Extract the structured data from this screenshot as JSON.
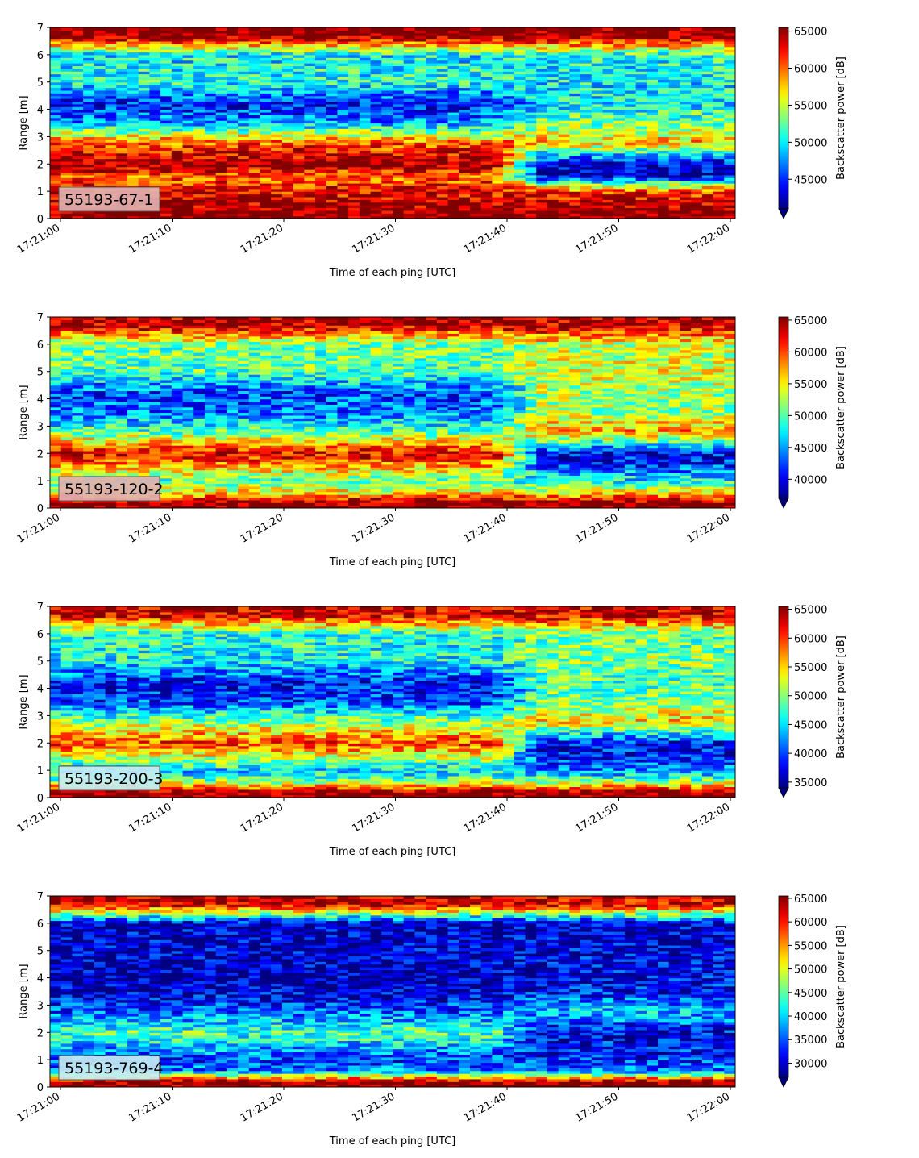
{
  "chart_data": [
    {
      "type": "heatmap",
      "station_label": "55193-67-1",
      "xlabel": "Time of each ping [UTC]",
      "ylabel": "Range [m]",
      "colorbar_label": "Backscatter power [dB]",
      "x_ticks": [
        "17:21:00",
        "17:21:10",
        "17:21:20",
        "17:21:30",
        "17:21:40",
        "17:21:50",
        "17:22:00"
      ],
      "y_ticks": [
        0,
        1,
        2,
        3,
        4,
        5,
        6,
        7
      ],
      "ylim": [
        0,
        7
      ],
      "clim": [
        41000,
        65500
      ],
      "colorbar_ticks": [
        45000,
        50000,
        55000,
        60000,
        65000
      ],
      "colormap": "jet",
      "extend": "min",
      "label_box_color": "#dfb0b0",
      "profile": [
        {
          "range_m": 0.2,
          "early": 65500,
          "late": 65500
        },
        {
          "range_m": 0.6,
          "early": 64000,
          "late": 64000
        },
        {
          "range_m": 1.0,
          "early": 62500,
          "late": 61000
        },
        {
          "range_m": 1.6,
          "early": 60000,
          "late": 43000
        },
        {
          "range_m": 2.0,
          "early": 65500,
          "late": 43000
        },
        {
          "range_m": 2.8,
          "early": 60000,
          "late": 58000
        },
        {
          "range_m": 3.5,
          "early": 48000,
          "late": 53000
        },
        {
          "range_m": 4.2,
          "early": 44000,
          "late": 50000
        },
        {
          "range_m": 5.0,
          "early": 51000,
          "late": 50000
        },
        {
          "range_m": 6.0,
          "early": 50000,
          "late": 51000
        },
        {
          "range_m": 6.7,
          "early": 65500,
          "late": 65500
        }
      ]
    },
    {
      "type": "heatmap",
      "station_label": "55193-120-2",
      "xlabel": "Time of each ping [UTC]",
      "ylabel": "Range [m]",
      "colorbar_label": "Backscatter power [dB]",
      "x_ticks": [
        "17:21:00",
        "17:21:10",
        "17:21:20",
        "17:21:30",
        "17:21:40",
        "17:21:50",
        "17:22:00"
      ],
      "y_ticks": [
        0,
        1,
        2,
        3,
        4,
        5,
        6,
        7
      ],
      "ylim": [
        0,
        7
      ],
      "clim": [
        37000,
        65500
      ],
      "colorbar_ticks": [
        40000,
        45000,
        50000,
        55000,
        60000,
        65000
      ],
      "colormap": "jet",
      "extend": "min",
      "label_box_color": "#dfb0b0",
      "profile": [
        {
          "range_m": 0.2,
          "early": 65500,
          "late": 65500
        },
        {
          "range_m": 0.6,
          "early": 55000,
          "late": 55000
        },
        {
          "range_m": 1.0,
          "early": 50000,
          "late": 48000
        },
        {
          "range_m": 1.6,
          "early": 58000,
          "late": 42000
        },
        {
          "range_m": 2.0,
          "early": 63000,
          "late": 40000
        },
        {
          "range_m": 2.8,
          "early": 50000,
          "late": 58000
        },
        {
          "range_m": 3.5,
          "early": 44000,
          "late": 52000
        },
        {
          "range_m": 4.2,
          "early": 42000,
          "late": 52000
        },
        {
          "range_m": 5.0,
          "early": 50000,
          "late": 54000
        },
        {
          "range_m": 6.0,
          "early": 51000,
          "late": 53000
        },
        {
          "range_m": 6.7,
          "early": 64000,
          "late": 64000
        }
      ]
    },
    {
      "type": "heatmap",
      "station_label": "55193-200-3",
      "xlabel": "Time of each ping [UTC]",
      "ylabel": "Range [m]",
      "colorbar_label": "Backscatter power [dB]",
      "x_ticks": [
        "17:21:00",
        "17:21:10",
        "17:21:20",
        "17:21:30",
        "17:21:40",
        "17:21:50",
        "17:22:00"
      ],
      "y_ticks": [
        0,
        1,
        2,
        3,
        4,
        5,
        6,
        7
      ],
      "ylim": [
        0,
        7
      ],
      "clim": [
        34000,
        65500
      ],
      "colorbar_ticks": [
        35000,
        40000,
        45000,
        50000,
        55000,
        60000,
        65000
      ],
      "colormap": "jet",
      "extend": "min",
      "label_box_color": "#c6ecf3",
      "profile": [
        {
          "range_m": 0.2,
          "early": 65500,
          "late": 65500
        },
        {
          "range_m": 0.6,
          "early": 50000,
          "late": 50000
        },
        {
          "range_m": 1.0,
          "early": 44000,
          "late": 42000
        },
        {
          "range_m": 1.6,
          "early": 54000,
          "late": 38000
        },
        {
          "range_m": 2.0,
          "early": 60000,
          "late": 38000
        },
        {
          "range_m": 2.8,
          "early": 50000,
          "late": 55000
        },
        {
          "range_m": 3.5,
          "early": 40000,
          "late": 50000
        },
        {
          "range_m": 4.2,
          "early": 38000,
          "late": 48000
        },
        {
          "range_m": 5.0,
          "early": 46000,
          "late": 50000
        },
        {
          "range_m": 6.0,
          "early": 47000,
          "late": 49000
        },
        {
          "range_m": 6.7,
          "early": 63000,
          "late": 63000
        }
      ]
    },
    {
      "type": "heatmap",
      "station_label": "55193-769-4",
      "xlabel": "Time of each ping [UTC]",
      "ylabel": "Range [m]",
      "colorbar_label": "Backscatter power [dB]",
      "x_ticks": [
        "17:21:00",
        "17:21:10",
        "17:21:20",
        "17:21:30",
        "17:21:40",
        "17:21:50",
        "17:22:00"
      ],
      "y_ticks": [
        0,
        1,
        2,
        3,
        4,
        5,
        6,
        7
      ],
      "ylim": [
        0,
        7
      ],
      "clim": [
        27000,
        65500
      ],
      "colorbar_ticks": [
        30000,
        35000,
        40000,
        45000,
        50000,
        55000,
        60000,
        65000
      ],
      "colormap": "jet",
      "extend": "min",
      "label_box_color": "#c6ecf3",
      "profile": [
        {
          "range_m": 0.2,
          "early": 65500,
          "late": 65500
        },
        {
          "range_m": 0.6,
          "early": 37000,
          "late": 37000
        },
        {
          "range_m": 1.0,
          "early": 34000,
          "late": 33000
        },
        {
          "range_m": 1.6,
          "early": 40000,
          "late": 32000
        },
        {
          "range_m": 2.0,
          "early": 45000,
          "late": 31000
        },
        {
          "range_m": 2.8,
          "early": 35000,
          "late": 40000
        },
        {
          "range_m": 3.5,
          "early": 30000,
          "late": 32000
        },
        {
          "range_m": 4.2,
          "early": 29000,
          "late": 31000
        },
        {
          "range_m": 5.0,
          "early": 30000,
          "late": 31000
        },
        {
          "range_m": 6.0,
          "early": 30000,
          "late": 30000
        },
        {
          "range_m": 6.7,
          "early": 63000,
          "late": 62000
        }
      ]
    }
  ]
}
